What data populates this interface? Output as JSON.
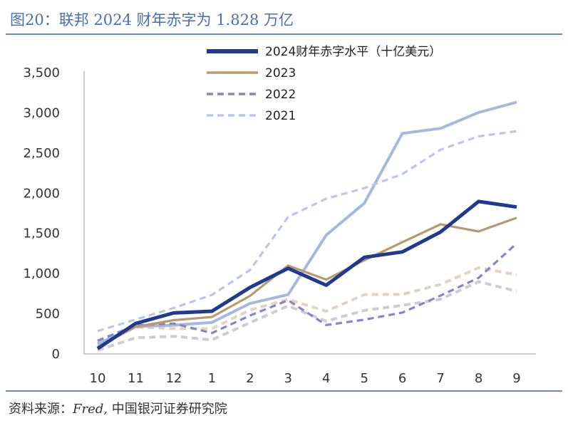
{
  "header": {
    "title": "图20：联邦 2024 财年赤字为 1.828 万亿"
  },
  "footer": {
    "source_prefix": "资料来源：",
    "source_italic": "Fred,",
    "source_suffix": " 中国银河证券研究院"
  },
  "chart_data": {
    "type": "line",
    "categories": [
      "10",
      "11",
      "12",
      "1",
      "2",
      "3",
      "4",
      "5",
      "6",
      "7",
      "8",
      "9"
    ],
    "ylim": [
      0,
      3500
    ],
    "yticks": [
      "0",
      "500",
      "1,000",
      "1,500",
      "2,000",
      "2,500",
      "3,000",
      "3,500"
    ],
    "ytick_values": [
      0,
      500,
      1000,
      1500,
      2000,
      2500,
      3000,
      3500
    ],
    "legend_position": "top-right",
    "grid": false,
    "series": [
      {
        "name": "2024财年赤字水平（十亿美元）",
        "color": "#1f3a8f",
        "style": "solid",
        "width": "thick",
        "in_legend": true,
        "values": [
          66,
          380,
          510,
          532,
          828,
          1065,
          855,
          1202,
          1270,
          1517,
          1897,
          1828
        ]
      },
      {
        "name": "2023",
        "color": "#b99a6e",
        "style": "solid",
        "width": "normal",
        "in_legend": true,
        "values": [
          88,
          337,
          421,
          460,
          722,
          1100,
          925,
          1165,
          1390,
          1613,
          1524,
          1695
        ]
      },
      {
        "name": "2022",
        "color": "#8a85c0",
        "style": "dashed",
        "width": "normal",
        "in_legend": true,
        "values": [
          165,
          356,
          378,
          260,
          478,
          668,
          360,
          426,
          515,
          726,
          946,
          1375
        ]
      },
      {
        "name": "2021",
        "color": "#b9c8ea",
        "style": "dashed",
        "width": "normal",
        "in_legend": true,
        "values": [
          284,
          429,
          572,
          735,
          1045,
          1706,
          1932,
          2064,
          2238,
          2540,
          2708,
          2772
        ]
      },
      {
        "name": "",
        "color": "#a4b8e0",
        "style": "solid",
        "width": "thick",
        "in_legend": false,
        "values": [
          125,
          340,
          358,
          392,
          628,
          738,
          1478,
          1876,
          2744,
          2806,
          3004,
          3132
        ]
      },
      {
        "name": "",
        "color": "#e3d3c0",
        "style": "dashed",
        "width": "thick",
        "in_legend": false,
        "values": [
          134,
          334,
          315,
          314,
          547,
          680,
          531,
          738,
          741,
          865,
          1072,
          984
        ]
      },
      {
        "name": "",
        "color": "#cdcbd3",
        "style": "dashed",
        "width": "thick",
        "in_legend": false,
        "values": [
          45,
          201,
          220,
          175,
          389,
          598,
          408,
          541,
          604,
          680,
          899,
          780
        ]
      }
    ]
  }
}
